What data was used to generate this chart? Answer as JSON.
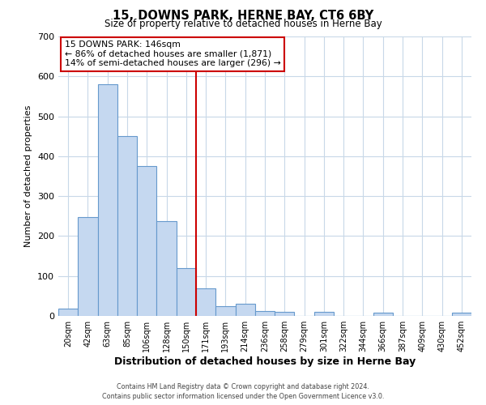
{
  "title": "15, DOWNS PARK, HERNE BAY, CT6 6BY",
  "subtitle": "Size of property relative to detached houses in Herne Bay",
  "xlabel": "Distribution of detached houses by size in Herne Bay",
  "ylabel": "Number of detached properties",
  "bar_labels": [
    "20sqm",
    "42sqm",
    "63sqm",
    "85sqm",
    "106sqm",
    "128sqm",
    "150sqm",
    "171sqm",
    "193sqm",
    "214sqm",
    "236sqm",
    "258sqm",
    "279sqm",
    "301sqm",
    "322sqm",
    "344sqm",
    "366sqm",
    "387sqm",
    "409sqm",
    "430sqm",
    "452sqm"
  ],
  "bar_heights": [
    18,
    248,
    580,
    450,
    375,
    237,
    120,
    68,
    25,
    31,
    13,
    10,
    0,
    10,
    0,
    0,
    8,
    0,
    0,
    0,
    8
  ],
  "bar_color": "#c5d8f0",
  "bar_edge_color": "#6699cc",
  "vline_position": 6.5,
  "vline_color": "#cc0000",
  "annotation_title": "15 DOWNS PARK: 146sqm",
  "annotation_line1": "← 86% of detached houses are smaller (1,871)",
  "annotation_line2": "14% of semi-detached houses are larger (296) →",
  "annotation_box_color": "#cc0000",
  "ylim": [
    0,
    700
  ],
  "yticks": [
    0,
    100,
    200,
    300,
    400,
    500,
    600,
    700
  ],
  "footer1": "Contains HM Land Registry data © Crown copyright and database right 2024.",
  "footer2": "Contains public sector information licensed under the Open Government Licence v3.0.",
  "bg_color": "#ffffff",
  "grid_color": "#c8d8e8"
}
